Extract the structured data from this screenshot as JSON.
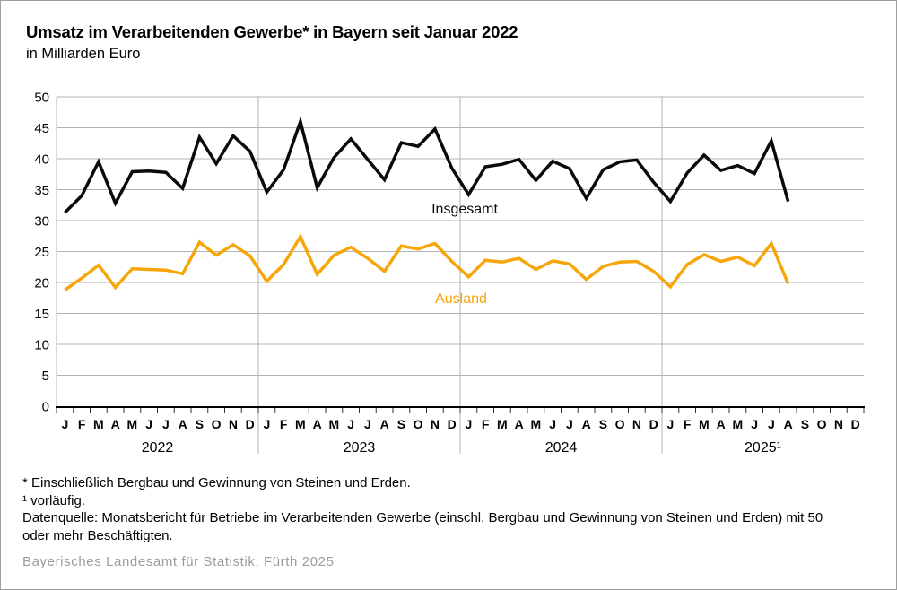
{
  "page": {
    "title": "Umsatz im Verarbeitenden Gewerbe* in Bayern seit Januar 2022",
    "subtitle": "in Milliarden Euro",
    "footnotes": [
      "* Einschließlich Bergbau und Gewinnung von Steinen und Erden.",
      "¹ vorläufig.",
      "Datenquelle: Monatsbericht für Betriebe im Verarbeitenden Gewerbe (einschl. Bergbau und Gewinnung von Steinen und Erden) mit 50 oder mehr Beschäftigten."
    ],
    "source": "Bayerisches Landesamt für Statistik, Fürth 2025"
  },
  "colors": {
    "line_total": "#0a0a0a",
    "line_foreign": "#F7A60A",
    "grid": "#b3b3b3",
    "axis": "#000000",
    "source_gray": "#9c9c9c"
  },
  "chart_data": {
    "type": "line",
    "title": "Umsatz im Verarbeitenden Gewerbe in Bayern seit Januar 2022",
    "ylabel": "in Milliarden Euro",
    "ylim": [
      0,
      50
    ],
    "ytick_step": 5,
    "grid": true,
    "legend_position": "inline-labels",
    "years": [
      "2022",
      "2023",
      "2024",
      "2025¹"
    ],
    "months": [
      "J",
      "F",
      "M",
      "A",
      "M",
      "J",
      "J",
      "A",
      "S",
      "O",
      "N",
      "D"
    ],
    "last_data_month": "August 2025",
    "series": [
      {
        "name": "Insgesamt",
        "color": "#0a0a0a",
        "values": [
          31.3,
          34.0,
          39.5,
          32.8,
          37.9,
          38.0,
          37.8,
          35.2,
          43.5,
          39.2,
          43.7,
          41.2,
          34.6,
          38.2,
          46.0,
          35.3,
          40.2,
          43.2,
          39.9,
          36.6,
          42.6,
          42.0,
          44.8,
          38.5,
          34.2,
          38.7,
          39.1,
          39.9,
          36.5,
          39.6,
          38.4,
          33.6,
          38.2,
          39.5,
          39.8,
          36.2,
          33.1,
          37.7,
          40.6,
          38.1,
          38.9,
          37.6,
          42.9,
          33.1
        ]
      },
      {
        "name": "Ausland",
        "color": "#F7A60A",
        "values": [
          18.8,
          20.7,
          22.8,
          19.2,
          22.2,
          22.1,
          22.0,
          21.4,
          26.5,
          24.4,
          26.1,
          24.3,
          20.2,
          22.9,
          27.4,
          21.3,
          24.4,
          25.7,
          23.9,
          21.8,
          25.9,
          25.4,
          26.3,
          23.4,
          20.9,
          23.6,
          23.3,
          23.9,
          22.1,
          23.5,
          23.0,
          20.5,
          22.6,
          23.3,
          23.4,
          21.8,
          19.3,
          22.9,
          24.5,
          23.4,
          24.1,
          22.7,
          26.3,
          19.8
        ]
      }
    ]
  }
}
